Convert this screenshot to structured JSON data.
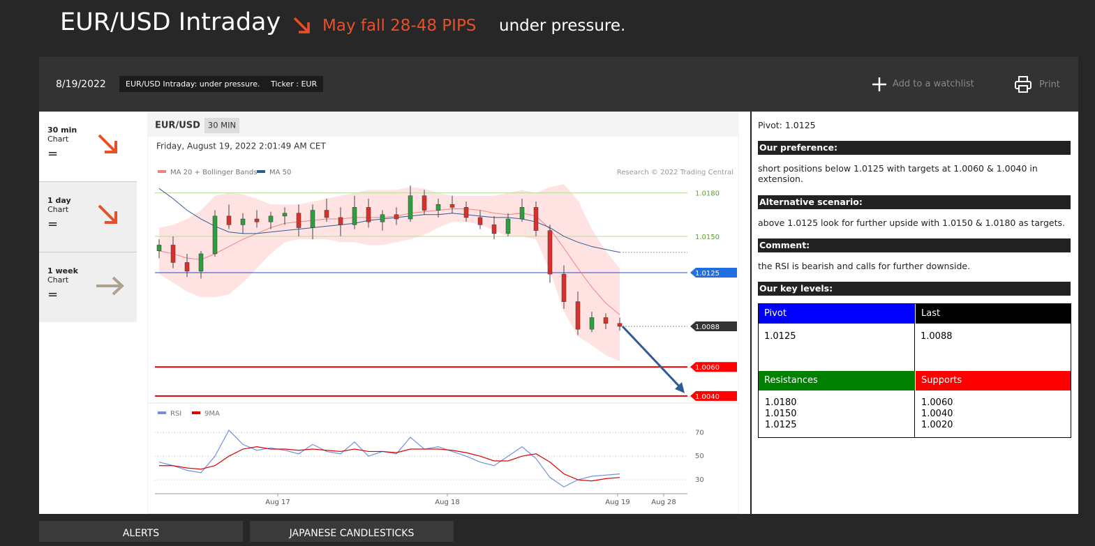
{
  "header": {
    "title": "EUR/USD Intraday",
    "signal": "May fall 28-48 PIPS",
    "status": "under pressure."
  },
  "toolbar": {
    "date": "8/19/2022",
    "tags": [
      "EUR/USD Intraday: under pressure.",
      "Ticker : EUR"
    ],
    "watchlist": "Add to a watchlist",
    "print": "Print"
  },
  "timeframes": [
    {
      "period": "30 min",
      "label": "Chart",
      "state": "="
    },
    {
      "period": "1 day",
      "label": "Chart",
      "state": "="
    },
    {
      "period": "1 week",
      "label": "Chart",
      "state": "="
    }
  ],
  "chart_data": {
    "type": "candlestick",
    "symbol": "EUR/USD",
    "interval": "30 MIN",
    "timestamp": "Friday, August 19, 2022 2:01:49 AM CET",
    "copyright": "Research © 2022 Trading Central",
    "legend": [
      {
        "name": "MA 20 + Bollinger Bands",
        "color": "#f08080"
      },
      {
        "name": "MA 50",
        "color": "#2f5b95"
      }
    ],
    "xlim": [
      -0.3,
      37.85
    ],
    "xticks": [
      {
        "value": 8.5,
        "label": "Aug 17"
      },
      {
        "value": 20.65,
        "label": "Aug 18"
      },
      {
        "value": 32.85,
        "label": "Aug 19"
      },
      {
        "value": 36.15,
        "label": "Aug 28"
      }
    ],
    "ylim": [
      1.0038,
      1.0187
    ],
    "up_color": "#2e9e3e",
    "down_color": "#d9302c",
    "open": [
      1.014,
      1.0144,
      1.0132,
      1.0126,
      1.0138,
      1.0164,
      1.0158,
      1.0162,
      1.016,
      1.0164,
      1.0166,
      1.0156,
      1.0168,
      1.0163,
      1.0158,
      1.017,
      1.016,
      1.0165,
      1.0162,
      1.0178,
      1.0168,
      1.0172,
      1.017,
      1.0163,
      1.0158,
      1.0152,
      1.0162,
      1.017,
      1.0154,
      1.0124,
      1.0105,
      1.0086,
      1.0094,
      1.009
    ],
    "high": [
      1.0148,
      1.015,
      1.0138,
      1.014,
      1.0168,
      1.0172,
      1.0166,
      1.0168,
      1.0167,
      1.017,
      1.0172,
      1.0172,
      1.0176,
      1.017,
      1.0178,
      1.0176,
      1.0168,
      1.017,
      1.0185,
      1.0182,
      1.0176,
      1.0178,
      1.0174,
      1.0168,
      1.0164,
      1.0166,
      1.0176,
      1.0174,
      1.0158,
      1.013,
      1.0112,
      1.0098,
      1.0097,
      1.0094
    ],
    "low": [
      1.0135,
      1.0128,
      1.0122,
      1.0121,
      1.0136,
      1.0155,
      1.0152,
      1.0156,
      1.0155,
      1.0158,
      1.015,
      1.0148,
      1.016,
      1.015,
      1.0155,
      1.0156,
      1.0154,
      1.0158,
      1.016,
      1.0165,
      1.0163,
      1.0166,
      1.016,
      1.0155,
      1.0148,
      1.015,
      1.016,
      1.015,
      1.0118,
      1.01,
      1.0082,
      1.0084,
      1.0086,
      1.0085
    ],
    "close": [
      1.0144,
      1.0132,
      1.0126,
      1.0138,
      1.0164,
      1.0158,
      1.0162,
      1.016,
      1.0164,
      1.0166,
      1.0156,
      1.0168,
      1.0163,
      1.0158,
      1.017,
      1.016,
      1.0165,
      1.0162,
      1.0178,
      1.0168,
      1.0172,
      1.017,
      1.0163,
      1.0158,
      1.0152,
      1.0162,
      1.017,
      1.0154,
      1.0124,
      1.0105,
      1.0086,
      1.0094,
      1.009,
      1.0088
    ],
    "ma20": [
      1.014,
      1.0138,
      1.0135,
      1.0134,
      1.0138,
      1.0143,
      1.0148,
      1.0152,
      1.0156,
      1.0159,
      1.016,
      1.0161,
      1.0162,
      1.0162,
      1.0163,
      1.0163,
      1.0163,
      1.0164,
      1.0166,
      1.0167,
      1.0168,
      1.0169,
      1.0169,
      1.0168,
      1.0166,
      1.0165,
      1.0166,
      1.0164,
      1.0155,
      1.0142,
      1.0128,
      1.0115,
      1.0104,
      1.0096
    ],
    "upper_band": [
      1.0156,
      1.0158,
      1.0162,
      1.0168,
      1.0178,
      1.018,
      1.0179,
      1.0176,
      1.0172,
      1.0172,
      1.0172,
      1.0174,
      1.0176,
      1.0178,
      1.018,
      1.0182,
      1.0182,
      1.0182,
      1.0184,
      1.0183,
      1.018,
      1.0178,
      1.0178,
      1.0178,
      1.0178,
      1.018,
      1.0182,
      1.018,
      1.0184,
      1.0186,
      1.0175,
      1.0155,
      1.014,
      1.0128
    ],
    "lower_band": [
      1.0124,
      1.0118,
      1.0112,
      1.0108,
      1.0108,
      1.011,
      1.0118,
      1.0128,
      1.0138,
      1.0146,
      1.0148,
      1.0148,
      1.0148,
      1.0146,
      1.0146,
      1.0144,
      1.0144,
      1.0146,
      1.0148,
      1.0151,
      1.0156,
      1.016,
      1.016,
      1.0158,
      1.0154,
      1.015,
      1.015,
      1.0148,
      1.0126,
      1.0098,
      1.0081,
      1.0075,
      1.0068,
      1.0064
    ],
    "ma50": [
      1.0183,
      1.0176,
      1.0168,
      1.0162,
      1.0157,
      1.0153,
      1.0152,
      1.0152,
      1.0153,
      1.0154,
      1.0155,
      1.0156,
      1.0157,
      1.0158,
      1.0159,
      1.0161,
      1.0162,
      1.0163,
      1.0164,
      1.0165,
      1.0165,
      1.0166,
      1.0165,
      1.0164,
      1.0163,
      1.0163,
      1.0162,
      1.016,
      1.0156,
      1.015,
      1.0146,
      1.0143,
      1.0141,
      1.0139
    ],
    "levels": [
      {
        "value": 1.018,
        "label": "1.0180",
        "color": "#5aa02c",
        "line": "#b5dc9a",
        "boxed": false
      },
      {
        "value": 1.015,
        "label": "1.0150",
        "color": "#5aa02c",
        "line": "#b5dc9a",
        "boxed": false
      },
      {
        "value": 1.0125,
        "label": "1.0125",
        "color": "#1f6fe0",
        "line": "#1f4fd0",
        "boxed": true
      },
      {
        "value": 1.0088,
        "label": "1.0088",
        "color": "#333333",
        "line": null,
        "boxed": true
      },
      {
        "value": 1.006,
        "label": "1.0060",
        "color": "#ff0000",
        "line": "#e00000",
        "boxed": true
      },
      {
        "value": 1.004,
        "label": "1.0040",
        "color": "#ff0000",
        "line": "#e00000",
        "boxed": true
      }
    ],
    "rsi": {
      "ylim": [
        20,
        82
      ],
      "yticks": [
        70,
        50,
        30
      ],
      "series": [
        {
          "name": "RSI",
          "color": "#6f8fe0",
          "values": [
            45,
            42,
            38,
            36,
            50,
            72,
            60,
            55,
            57,
            55,
            52,
            60,
            54,
            52,
            62,
            50,
            54,
            52,
            66,
            56,
            58,
            54,
            50,
            45,
            42,
            50,
            58,
            48,
            32,
            24,
            30,
            33,
            34,
            35
          ]
        },
        {
          "name": "9MA",
          "color": "#e00000",
          "values": [
            42,
            42,
            40,
            39,
            42,
            50,
            56,
            58,
            56,
            56,
            55,
            56,
            55,
            54,
            56,
            54,
            54,
            53,
            56,
            56,
            56,
            55,
            53,
            50,
            46,
            46,
            50,
            52,
            45,
            35,
            30,
            29,
            31,
            32
          ]
        }
      ]
    }
  },
  "analysis": {
    "pivot": "Pivot: 1.0125",
    "sections": [
      {
        "heading": "Our preference:",
        "text": "short positions below 1.0125 with targets at 1.0060 & 1.0040 in extension."
      },
      {
        "heading": "Alternative scenario:",
        "text": "above 1.0125 look for further upside with 1.0150 & 1.0180 as targets."
      },
      {
        "heading": "Comment:",
        "text": "the RSI is bearish and calls for further downside."
      }
    ],
    "key_levels_heading": "Our key levels:",
    "key_levels": {
      "pivot_header": "Pivot",
      "pivot": "1.0125",
      "last_header": "Last",
      "last": "1.0088",
      "resistances_header": "Resistances",
      "resistances": [
        "1.0180",
        "1.0150",
        "1.0125"
      ],
      "supports_header": "Supports",
      "supports": [
        "1.0060",
        "1.0040",
        "1.0020"
      ]
    }
  },
  "tabs": [
    "ALERTS",
    "JAPANESE CANDLESTICKS"
  ]
}
